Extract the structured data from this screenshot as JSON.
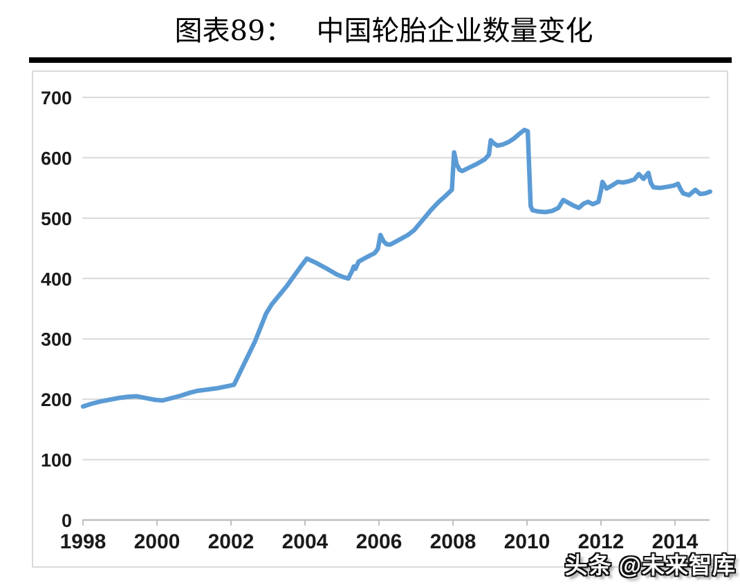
{
  "header": {
    "figure_label": "图表89：",
    "figure_title": "中国轮胎企业数量变化"
  },
  "watermark": {
    "text": "头条 @未来智库"
  },
  "chart_data": {
    "type": "line",
    "title": "中国轮胎企业数量变化",
    "xlabel": "",
    "ylabel": "",
    "x_ticks": [
      1998,
      2000,
      2002,
      2004,
      2006,
      2008,
      2010,
      2012,
      2014
    ],
    "y_ticks": [
      0,
      100,
      200,
      300,
      400,
      500,
      600,
      700
    ],
    "xlim": [
      1998,
      2015
    ],
    "ylim": [
      0,
      700
    ],
    "grid": true,
    "legend_position": "none",
    "colors": {
      "line": "#5B9BD5",
      "grid": "#D9D9D9",
      "axis": "#BFBFBF",
      "tick_label": "#1A1A1A"
    },
    "series": [
      {
        "name": "中国轮胎企业数量",
        "points": [
          [
            1998.0,
            188
          ],
          [
            1998.2,
            192
          ],
          [
            1998.45,
            196
          ],
          [
            1998.7,
            199
          ],
          [
            1998.95,
            202
          ],
          [
            1999.2,
            204
          ],
          [
            1999.45,
            205
          ],
          [
            1999.7,
            202
          ],
          [
            1999.95,
            199
          ],
          [
            2000.15,
            198
          ],
          [
            2000.4,
            202
          ],
          [
            2000.65,
            206
          ],
          [
            2000.9,
            211
          ],
          [
            2001.1,
            214
          ],
          [
            2001.35,
            216
          ],
          [
            2001.6,
            218
          ],
          [
            2001.85,
            221
          ],
          [
            2002.08,
            224
          ],
          [
            2002.35,
            258
          ],
          [
            2002.65,
            296
          ],
          [
            2002.95,
            342
          ],
          [
            2003.1,
            357
          ],
          [
            2003.3,
            372
          ],
          [
            2003.5,
            387
          ],
          [
            2003.7,
            404
          ],
          [
            2003.9,
            421
          ],
          [
            2004.05,
            433
          ],
          [
            2004.3,
            426
          ],
          [
            2004.6,
            416
          ],
          [
            2004.85,
            407
          ],
          [
            2005.05,
            402
          ],
          [
            2005.17,
            400
          ],
          [
            2005.27,
            412
          ],
          [
            2005.32,
            420
          ],
          [
            2005.36,
            416
          ],
          [
            2005.45,
            428
          ],
          [
            2005.6,
            433
          ],
          [
            2005.75,
            438
          ],
          [
            2005.88,
            442
          ],
          [
            2005.97,
            449
          ],
          [
            2006.04,
            472
          ],
          [
            2006.12,
            462
          ],
          [
            2006.2,
            457
          ],
          [
            2006.3,
            456
          ],
          [
            2006.45,
            461
          ],
          [
            2006.6,
            466
          ],
          [
            2006.78,
            472
          ],
          [
            2006.95,
            480
          ],
          [
            2007.1,
            491
          ],
          [
            2007.25,
            502
          ],
          [
            2007.4,
            513
          ],
          [
            2007.6,
            526
          ],
          [
            2007.8,
            537
          ],
          [
            2007.97,
            547
          ],
          [
            2008.03,
            609
          ],
          [
            2008.1,
            589
          ],
          [
            2008.18,
            580
          ],
          [
            2008.25,
            578
          ],
          [
            2008.45,
            584
          ],
          [
            2008.65,
            590
          ],
          [
            2008.85,
            597
          ],
          [
            2008.97,
            605
          ],
          [
            2009.02,
            629
          ],
          [
            2009.1,
            624
          ],
          [
            2009.2,
            620
          ],
          [
            2009.35,
            622
          ],
          [
            2009.5,
            626
          ],
          [
            2009.65,
            632
          ],
          [
            2009.8,
            640
          ],
          [
            2009.93,
            646
          ],
          [
            2010.02,
            644
          ],
          [
            2010.1,
            520
          ],
          [
            2010.15,
            513
          ],
          [
            2010.3,
            511
          ],
          [
            2010.5,
            510
          ],
          [
            2010.68,
            512
          ],
          [
            2010.85,
            517
          ],
          [
            2010.98,
            530
          ],
          [
            2011.1,
            526
          ],
          [
            2011.25,
            521
          ],
          [
            2011.4,
            517
          ],
          [
            2011.53,
            524
          ],
          [
            2011.65,
            527
          ],
          [
            2011.78,
            523
          ],
          [
            2011.93,
            527
          ],
          [
            2012.0,
            546
          ],
          [
            2012.04,
            560
          ],
          [
            2012.15,
            549
          ],
          [
            2012.3,
            554
          ],
          [
            2012.45,
            560
          ],
          [
            2012.6,
            559
          ],
          [
            2012.75,
            561
          ],
          [
            2012.9,
            564
          ],
          [
            2013.02,
            573
          ],
          [
            2013.15,
            565
          ],
          [
            2013.28,
            575
          ],
          [
            2013.35,
            558
          ],
          [
            2013.42,
            551
          ],
          [
            2013.6,
            550
          ],
          [
            2013.8,
            552
          ],
          [
            2013.98,
            554
          ],
          [
            2014.08,
            557
          ],
          [
            2014.15,
            548
          ],
          [
            2014.22,
            541
          ],
          [
            2014.38,
            538
          ],
          [
            2014.55,
            547
          ],
          [
            2014.68,
            540
          ],
          [
            2014.82,
            541
          ],
          [
            2014.95,
            544
          ]
        ]
      }
    ]
  }
}
